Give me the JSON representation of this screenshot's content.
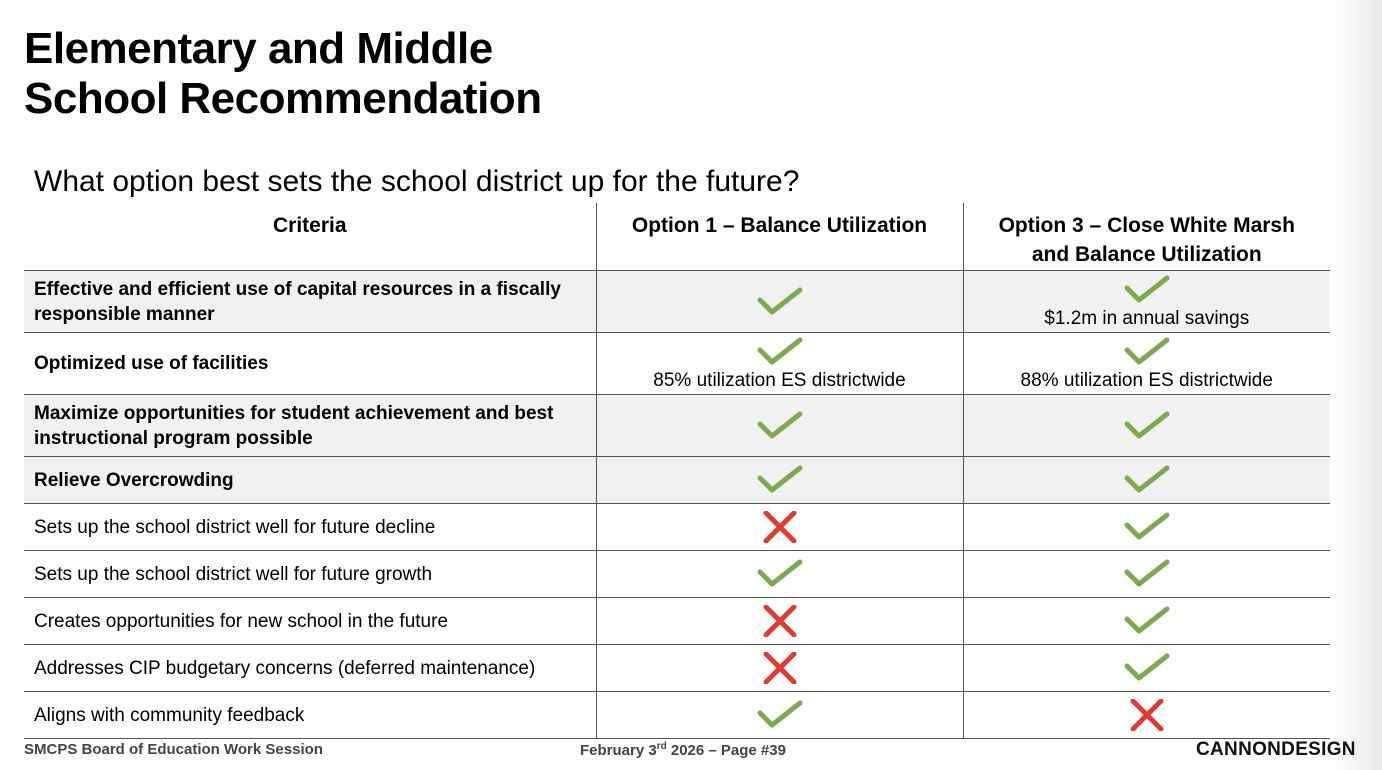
{
  "title": {
    "line1": "Elementary and Middle",
    "line2": "School Recommendation"
  },
  "subtitle": "What option best sets the school district up for the future?",
  "colors": {
    "check": "#7aab4e",
    "cross": "#e23a2e"
  },
  "table": {
    "headers": {
      "criteria": "Criteria",
      "option1": "Option 1 – Balance Utilization",
      "option3_line1": "Option 3 – Close White Marsh",
      "option3_line2": "and Balance Utilization"
    },
    "rows": [
      {
        "criteria": "Effective and efficient use of capital resources in a fiscally responsible manner",
        "bold": true,
        "shaded": true,
        "option1": "check",
        "option1_note": "",
        "option3": "check",
        "option3_note": "$1.2m in annual savings"
      },
      {
        "criteria": "Optimized use of facilities",
        "bold": true,
        "shaded": false,
        "option1": "check",
        "option1_note": "85% utilization ES districtwide",
        "option3": "check",
        "option3_note": "88% utilization ES districtwide"
      },
      {
        "criteria": "Maximize opportunities for student achievement and best instructional program possible",
        "bold": true,
        "shaded": true,
        "option1": "check",
        "option1_note": "",
        "option3": "check",
        "option3_note": ""
      },
      {
        "criteria": "Relieve Overcrowding",
        "bold": true,
        "shaded": true,
        "option1": "check",
        "option1_note": "",
        "option3": "check",
        "option3_note": ""
      },
      {
        "criteria": "Sets up the school district well for future decline",
        "bold": false,
        "shaded": false,
        "option1": "cross",
        "option1_note": "",
        "option3": "check",
        "option3_note": ""
      },
      {
        "criteria": "Sets up the school district well for future growth",
        "bold": false,
        "shaded": false,
        "option1": "check",
        "option1_note": "",
        "option3": "check",
        "option3_note": ""
      },
      {
        "criteria": "Creates opportunities for new school in the future",
        "bold": false,
        "shaded": false,
        "option1": "cross",
        "option1_note": "",
        "option3": "check",
        "option3_note": ""
      },
      {
        "criteria": "Addresses CIP budgetary concerns (deferred maintenance)",
        "bold": false,
        "shaded": false,
        "option1": "cross",
        "option1_note": "",
        "option3": "check",
        "option3_note": ""
      },
      {
        "criteria": "Aligns with community feedback",
        "bold": false,
        "shaded": false,
        "option1": "check",
        "option1_note": "",
        "option3": "cross",
        "option3_note": ""
      }
    ]
  },
  "footer": {
    "left": "SMCPS Board of Education Work Session",
    "date_prefix": "February 3",
    "date_sup": "rd",
    "date_suffix": " 2026 – Page #39",
    "brand": "CANNONDESIGN"
  }
}
